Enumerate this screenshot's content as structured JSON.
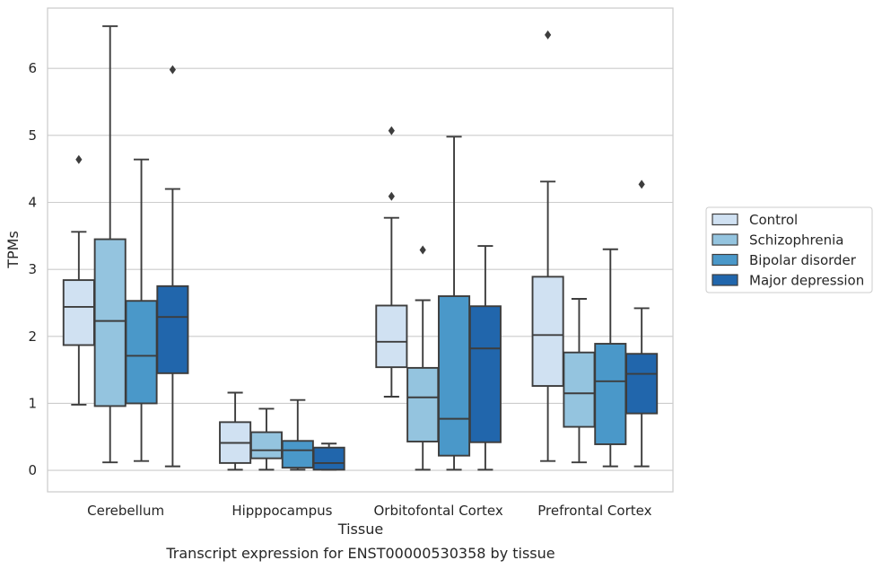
{
  "chart_data": {
    "type": "boxplot",
    "title": "",
    "caption": "Transcript expression for ENST00000530358 by tissue",
    "xlabel": "Tissue",
    "ylabel": "TPMs",
    "ylim": [
      -0.32,
      6.9
    ],
    "yticks": [
      0,
      1,
      2,
      3,
      4,
      5,
      6
    ],
    "categories": [
      "Cerebellum",
      "Hipppocampus",
      "Orbitofontal Cortex",
      "Prefrontal Cortex"
    ],
    "grid": "horizontal",
    "legend_position": "right",
    "series": [
      {
        "name": "Control",
        "color": "#d0e1f2",
        "boxes": [
          {
            "whislo": 0.98,
            "q1": 1.87,
            "med": 2.44,
            "q3": 2.84,
            "whishi": 3.56,
            "fliers": [
              4.64
            ]
          },
          {
            "whislo": 0.01,
            "q1": 0.11,
            "med": 0.41,
            "q3": 0.72,
            "whishi": 1.16,
            "fliers": []
          },
          {
            "whislo": 1.1,
            "q1": 1.54,
            "med": 1.92,
            "q3": 2.46,
            "whishi": 3.77,
            "fliers": [
              4.09,
              5.07
            ]
          },
          {
            "whislo": 0.14,
            "q1": 1.26,
            "med": 2.02,
            "q3": 2.89,
            "whishi": 4.31,
            "fliers": [
              6.5
            ]
          }
        ]
      },
      {
        "name": "Schizophrenia",
        "color": "#94c4df",
        "boxes": [
          {
            "whislo": 0.12,
            "q1": 0.96,
            "med": 2.23,
            "q3": 3.45,
            "whishi": 6.63,
            "fliers": []
          },
          {
            "whislo": 0.01,
            "q1": 0.18,
            "med": 0.3,
            "q3": 0.57,
            "whishi": 0.92,
            "fliers": []
          },
          {
            "whislo": 0.01,
            "q1": 0.43,
            "med": 1.09,
            "q3": 1.53,
            "whishi": 2.54,
            "fliers": [
              3.29
            ]
          },
          {
            "whislo": 0.12,
            "q1": 0.65,
            "med": 1.15,
            "q3": 1.76,
            "whishi": 2.56,
            "fliers": []
          }
        ]
      },
      {
        "name": "Bipolar disorder",
        "color": "#4a98c9",
        "boxes": [
          {
            "whislo": 0.14,
            "q1": 1.0,
            "med": 1.71,
            "q3": 2.53,
            "whishi": 4.64,
            "fliers": []
          },
          {
            "whislo": 0.01,
            "q1": 0.04,
            "med": 0.3,
            "q3": 0.44,
            "whishi": 1.05,
            "fliers": []
          },
          {
            "whislo": 0.01,
            "q1": 0.22,
            "med": 0.77,
            "q3": 2.6,
            "whishi": 4.98,
            "fliers": []
          },
          {
            "whislo": 0.06,
            "q1": 0.39,
            "med": 1.33,
            "q3": 1.89,
            "whishi": 3.3,
            "fliers": []
          }
        ]
      },
      {
        "name": "Major depression",
        "color": "#2166ac",
        "boxes": [
          {
            "whislo": 0.06,
            "q1": 1.45,
            "med": 2.29,
            "q3": 2.75,
            "whishi": 4.2,
            "fliers": [
              5.98
            ]
          },
          {
            "whislo": 0.01,
            "q1": 0.01,
            "med": 0.11,
            "q3": 0.34,
            "whishi": 0.4,
            "fliers": []
          },
          {
            "whislo": 0.01,
            "q1": 0.42,
            "med": 1.82,
            "q3": 2.45,
            "whishi": 3.35,
            "fliers": []
          },
          {
            "whislo": 0.06,
            "q1": 0.85,
            "med": 1.44,
            "q3": 1.74,
            "whishi": 2.42,
            "fliers": [
              4.27
            ]
          }
        ]
      }
    ]
  }
}
